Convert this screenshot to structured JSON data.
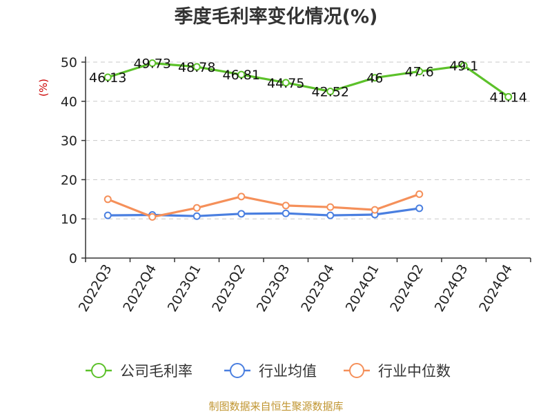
{
  "chart_data": {
    "type": "line",
    "title": "季度毛利率变化情况(%)",
    "ylabel": "(%)",
    "xlabel": "",
    "categories": [
      "2022Q3",
      "2022Q4",
      "2023Q1",
      "2023Q2",
      "2023Q3",
      "2023Q4",
      "2024Q1",
      "2024Q2",
      "2024Q3",
      "2024Q4"
    ],
    "ylim": [
      0,
      50
    ],
    "yticks": [
      0,
      10,
      20,
      30,
      40,
      50
    ],
    "grid": true,
    "legend_position": "bottom",
    "series": [
      {
        "name": "公司毛利率",
        "color": "#5cc12a",
        "labels": [
          "46.13",
          "49.73",
          "48.78",
          "46.81",
          "44.75",
          "42.52",
          "46",
          "47.6",
          "49.1",
          "41.14"
        ],
        "values": [
          46.13,
          49.73,
          48.78,
          46.81,
          44.75,
          42.52,
          46,
          47.6,
          49.1,
          41.14
        ]
      },
      {
        "name": "行业均值",
        "color": "#4a7fe0",
        "values": [
          10.9,
          11.0,
          10.7,
          11.3,
          11.4,
          10.9,
          11.1,
          12.7,
          null,
          null
        ]
      },
      {
        "name": "行业中位数",
        "color": "#f5905a",
        "values": [
          15.0,
          10.5,
          12.8,
          15.7,
          13.4,
          13.0,
          12.3,
          16.3,
          null,
          null
        ]
      }
    ]
  },
  "source_text": "制图数据来自恒生聚源数据库"
}
